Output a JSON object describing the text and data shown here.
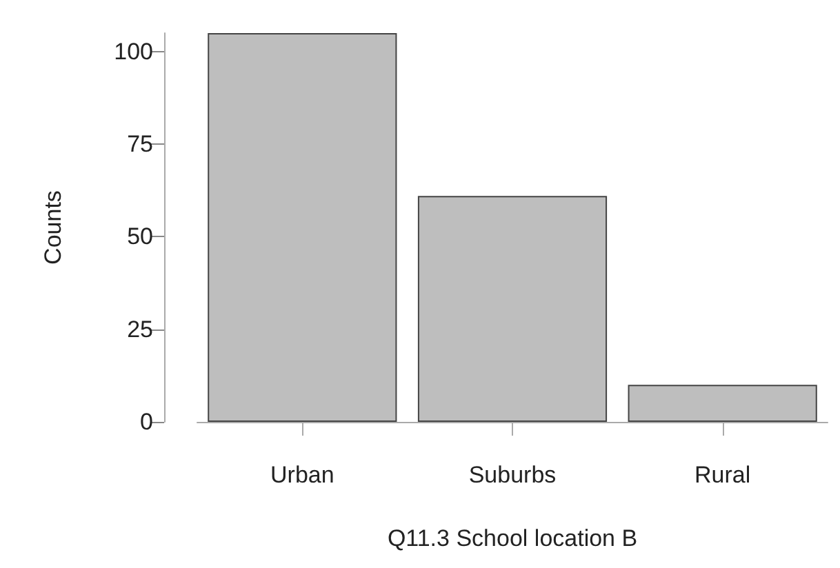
{
  "chart_data": {
    "type": "bar",
    "xlabel": "Q11.3 School location B",
    "ylabel": "Counts",
    "categories": [
      "Urban",
      "Suburbs",
      "Rural"
    ],
    "values": [
      105,
      61,
      10
    ],
    "color": "#bebebe",
    "ylim": [
      0,
      105
    ],
    "yticks": [
      0,
      25,
      50,
      75,
      100
    ],
    "grid": false
  }
}
